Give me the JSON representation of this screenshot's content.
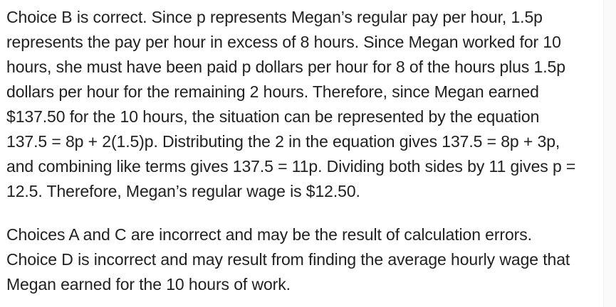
{
  "page": {
    "background_color": "#ffffff",
    "text_color": "#212121",
    "scrollbar_track_color": "#fafafa"
  },
  "explanation": {
    "paragraphs": [
      {
        "lines": [
          "Choice B is correct. Since p represents Megan’s regular pay per hour, 1.5p",
          "represents the pay per hour in excess of 8 hours. Since Megan worked for 10",
          "hours, she must have been paid p dollars per hour for 8 of the hours plus 1.5p",
          "dollars per hour for the remaining 2 hours. Therefore, since Megan earned",
          "$137.50 for the 10 hours, the situation can be represented by the equation",
          "137.5 = 8p + 2(1.5)p. Distributing the 2 in the equation gives 137.5 = 8p + 3p,",
          "and combining like terms gives 137.5 = 11p. Dividing both sides by 11 gives p =",
          "12.5. Therefore, Megan’s regular wage is $12.50."
        ]
      },
      {
        "lines": [
          "Choices A and C are incorrect and may be the result of calculation errors.",
          "Choice D is incorrect and may result from finding the average hourly wage that",
          "Megan earned for the 10 hours of work."
        ]
      }
    ]
  }
}
